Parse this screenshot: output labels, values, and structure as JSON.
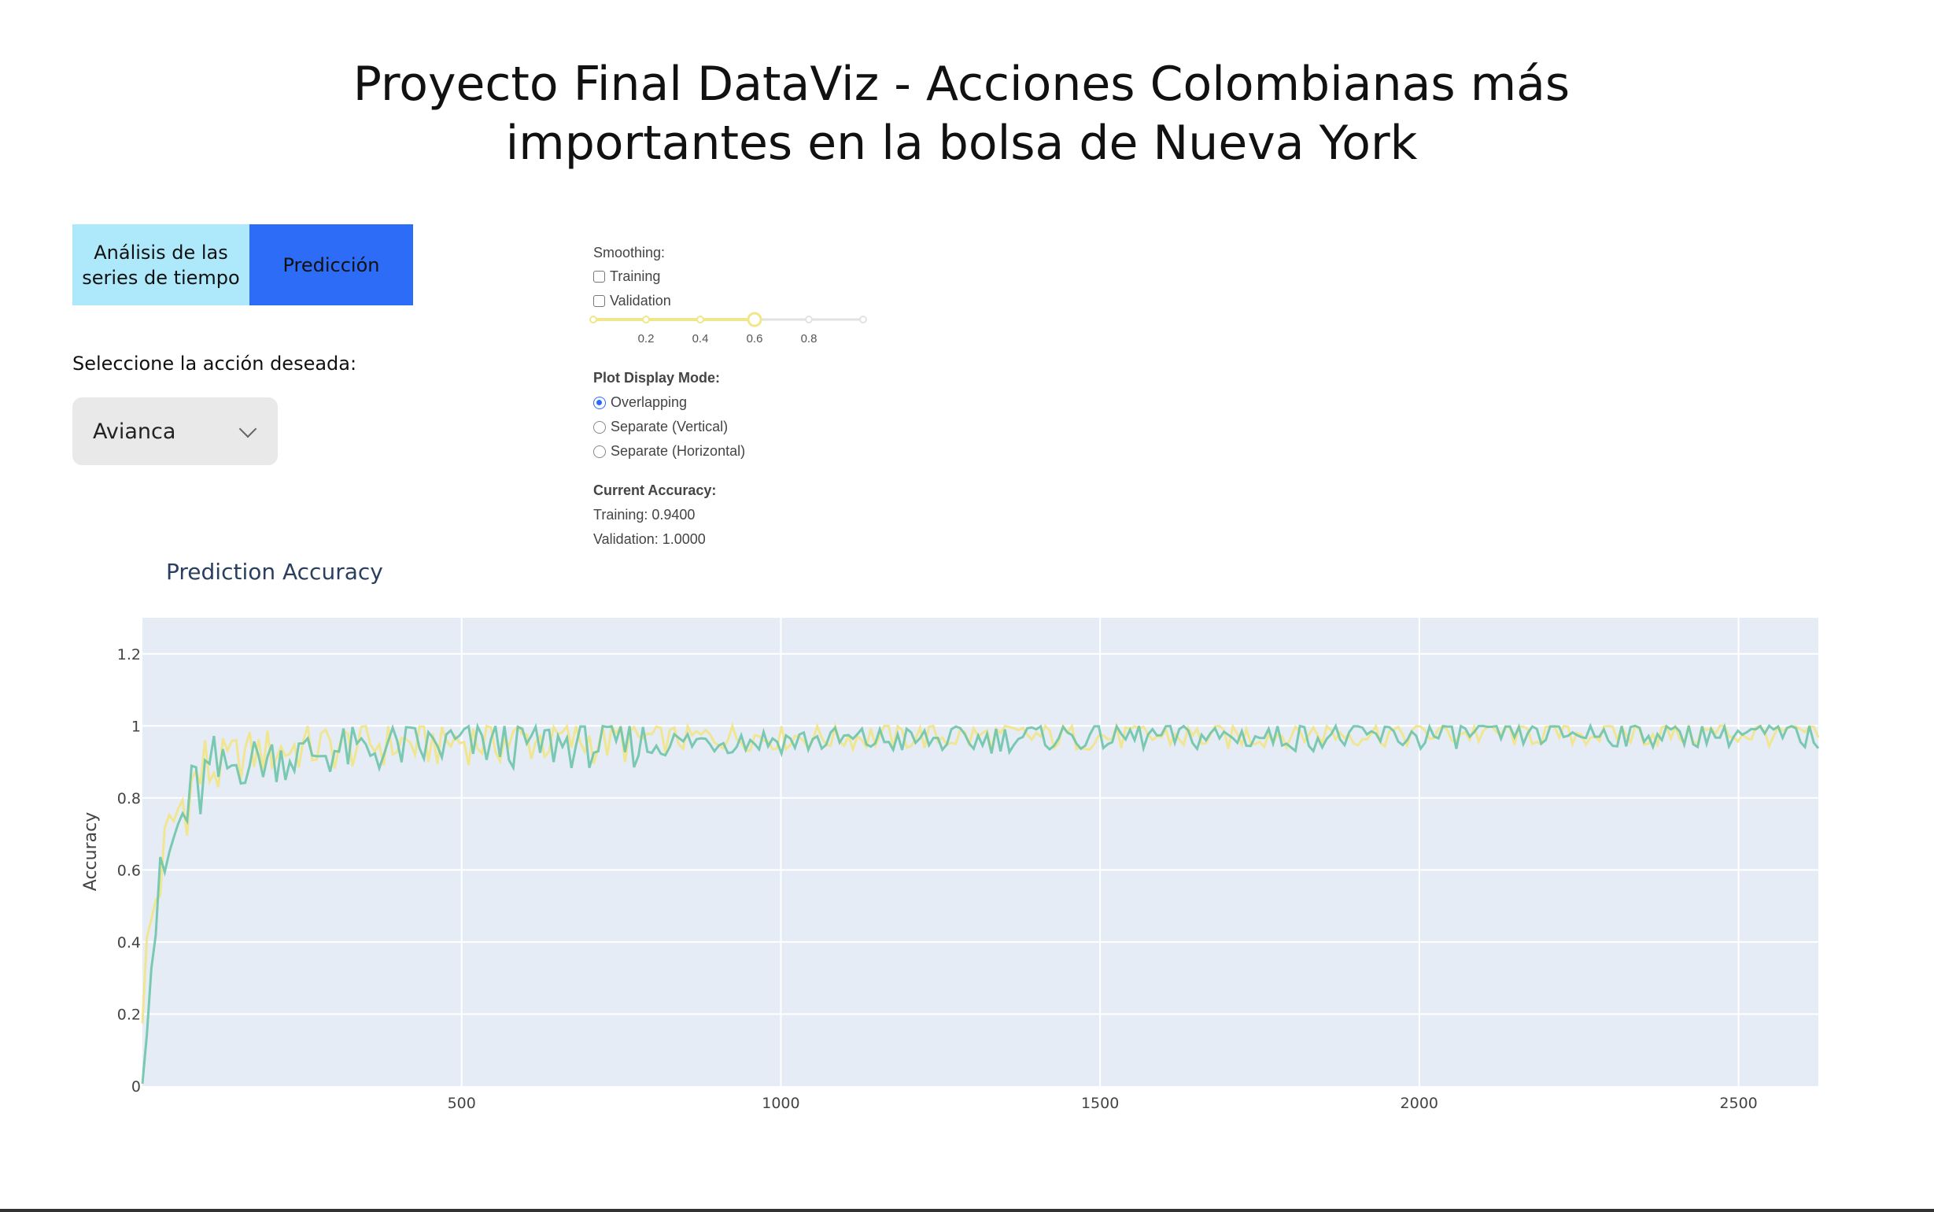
{
  "page": {
    "title_line1": "Proyecto Final DataViz - Acciones Colombianas más",
    "title_line2": "importantes en la bolsa de Nueva York"
  },
  "tabs": [
    {
      "label_line1": "Análisis de las",
      "label_line2": "series de tiempo",
      "color": "#aee9fb"
    },
    {
      "label": "Predicción",
      "color": "#2d6cf6",
      "selected": true
    }
  ],
  "selector": {
    "label": "Seleccione la acción deseada:",
    "value": "Avianca"
  },
  "controls": {
    "smoothing": {
      "heading": "Smoothing:",
      "training_label": "Training",
      "validation_label": "Validation",
      "training_checked": false,
      "validation_checked": false,
      "slider_value": 0.6,
      "slider_ticks": [
        "0.2",
        "0.4",
        "0.6",
        "0.8"
      ],
      "slider_color": "#f0e68c"
    },
    "display_mode": {
      "heading": "Plot Display Mode:",
      "options": [
        "Overlapping",
        "Separate (Vertical)",
        "Separate (Horizontal)"
      ],
      "selected": "Overlapping"
    },
    "accuracy": {
      "heading": "Current Accuracy:",
      "training_text": "Training: 0.9400",
      "validation_text": "Validation: 1.0000"
    }
  },
  "chart_data": {
    "type": "line",
    "title": "Prediction Accuracy",
    "xlabel": "",
    "ylabel": "Accuracy",
    "xlim": [
      0,
      2625
    ],
    "ylim": [
      0,
      1.3
    ],
    "x_ticks": [
      500,
      1000,
      1500,
      2000,
      2500
    ],
    "y_ticks": [
      0,
      0.2,
      0.4,
      0.6,
      0.8,
      1,
      1.2
    ],
    "y_tick_labels": [
      "0",
      "0.2",
      "0.4",
      "0.6",
      "0.8",
      "1",
      "1.2"
    ],
    "grid": true,
    "background": "#e5ecf6",
    "series": [
      {
        "color": "#f0e68c",
        "x": [
          0,
          10,
          20,
          30,
          40,
          50,
          60,
          80,
          100,
          130,
          160,
          200,
          250,
          300,
          350,
          400,
          450,
          500,
          600,
          700,
          800,
          900,
          1000,
          1100,
          1200,
          1300,
          1400,
          1500,
          1600,
          1700,
          1800,
          1900,
          2000,
          2100,
          2200,
          2300,
          2400,
          2500,
          2625
        ],
        "y": [
          0.25,
          0.4,
          0.52,
          0.6,
          0.68,
          0.74,
          0.78,
          0.84,
          0.88,
          0.9,
          0.92,
          0.93,
          0.94,
          0.94,
          0.95,
          0.95,
          0.95,
          0.96,
          0.96,
          0.96,
          0.96,
          0.97,
          0.97,
          0.97,
          0.97,
          0.97,
          0.97,
          0.97,
          0.97,
          0.97,
          0.98,
          0.98,
          0.98,
          0.98,
          0.98,
          0.98,
          0.98,
          0.98,
          0.98
        ]
      },
      {
        "color": "#66c2a5",
        "x": [
          0,
          10,
          20,
          30,
          40,
          50,
          60,
          80,
          100,
          130,
          160,
          200,
          250,
          300,
          350,
          400,
          450,
          500,
          600,
          700,
          800,
          900,
          1000,
          1100,
          1200,
          1300,
          1400,
          1500,
          1600,
          1700,
          1800,
          1900,
          2000,
          2100,
          2200,
          2300,
          2400,
          2500,
          2625
        ],
        "y": [
          0.12,
          0.3,
          0.45,
          0.55,
          0.62,
          0.68,
          0.73,
          0.8,
          0.85,
          0.88,
          0.9,
          0.91,
          0.92,
          0.93,
          0.93,
          0.94,
          0.94,
          0.95,
          0.95,
          0.95,
          0.95,
          0.96,
          0.96,
          0.96,
          0.96,
          0.96,
          0.97,
          0.97,
          0.97,
          0.97,
          0.97,
          0.97,
          0.97,
          0.98,
          0.98,
          0.98,
          0.98,
          0.98,
          0.97
        ]
      }
    ]
  }
}
